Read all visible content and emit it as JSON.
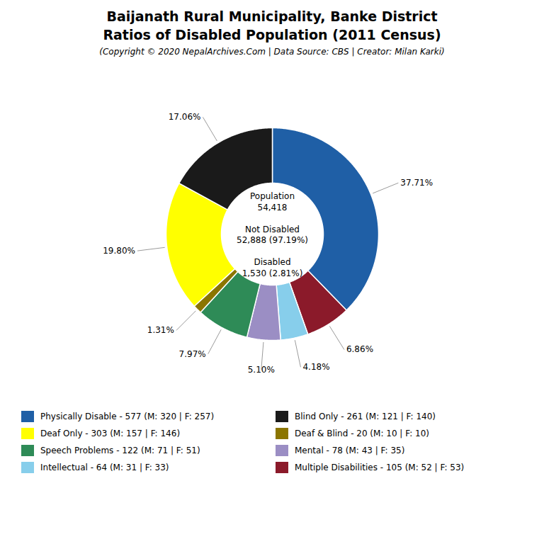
{
  "chart_data": {
    "type": "donut",
    "title": [
      "Baijanath Rural Municipality, Banke District",
      "Ratios of Disabled Population (2011 Census)"
    ],
    "subtitle": "(Copyright © 2020 NepalArchives.Com | Data Source: CBS | Creator: Milan Karki)",
    "annotations": [
      "Population",
      "54,418",
      "Not Disabled",
      "52,888 (97.19%)",
      "Disabled",
      "1,530 (2.81%)"
    ],
    "categories": [
      "Physically Disable - 577 (M: 320 | F: 257)",
      "Multiple Disabilities - 105 (M: 52 | F: 53)",
      "Intellectual - 64 (M: 31 | F: 33)",
      "Mental - 78 (M: 43 | F: 35)",
      "Speech Problems - 122 (M: 71 | F: 51)",
      "Deaf & Blind - 20 (M: 10 | F: 10)",
      "Deaf Only - 303 (M: 157 | F: 146)",
      "Blind Only - 261 (M: 121 | F: 140)"
    ],
    "values": [
      37.71,
      6.86,
      4.18,
      5.1,
      7.97,
      1.31,
      19.8,
      17.06
    ],
    "value_labels": [
      "37.71%",
      "6.86%",
      "4.18%",
      "5.10%",
      "7.97%",
      "1.31%",
      "19.80%",
      "17.06%"
    ],
    "colors": [
      "#1f5fa6",
      "#8b1a2a",
      "#87ceeb",
      "#9b8ec4",
      "#2e8b57",
      "#8b7500",
      "#ffff00",
      "#1a1a1a"
    ],
    "data_labels": true,
    "legend": "bottom"
  }
}
